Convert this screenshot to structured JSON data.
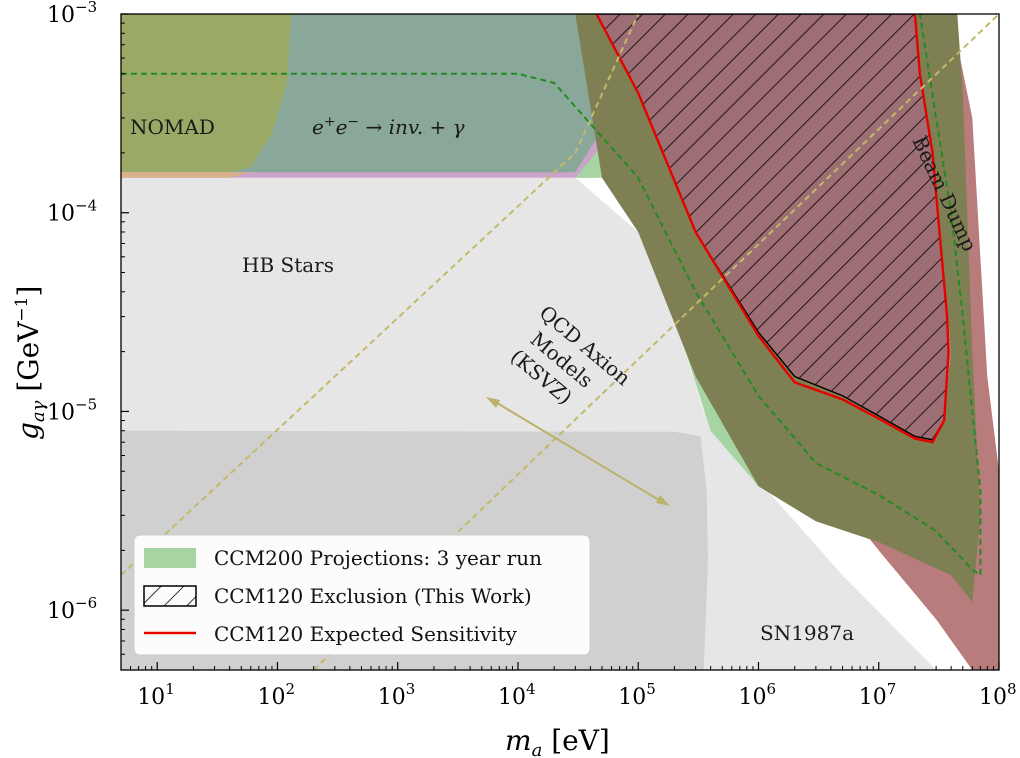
{
  "chart_data": {
    "type": "area",
    "title": "",
    "xlabel": "m_a [eV]",
    "ylabel": "g_aγ [GeV^-1]",
    "xscale": "log",
    "yscale": "log",
    "xlim": [
      5,
      100000000
    ],
    "ylim": [
      5e-07,
      0.001
    ],
    "grid": false,
    "legend_position": "lower-left",
    "x_ticks": [
      {
        "value": 10,
        "base": "10",
        "exp": "1"
      },
      {
        "value": 100,
        "base": "10",
        "exp": "2"
      },
      {
        "value": 1000,
        "base": "10",
        "exp": "3"
      },
      {
        "value": 10000,
        "base": "10",
        "exp": "4"
      },
      {
        "value": 100000,
        "base": "10",
        "exp": "5"
      },
      {
        "value": 1000000,
        "base": "10",
        "exp": "6"
      },
      {
        "value": 10000000,
        "base": "10",
        "exp": "7"
      },
      {
        "value": 100000000,
        "base": "10",
        "exp": "8"
      }
    ],
    "y_ticks": [
      {
        "value": 0.001,
        "base": "10",
        "exp": "−3"
      },
      {
        "value": 0.0001,
        "base": "10",
        "exp": "−4"
      },
      {
        "value": 1e-05,
        "base": "10",
        "exp": "−5"
      },
      {
        "value": 1e-06,
        "base": "10",
        "exp": "−6"
      }
    ],
    "regions": [
      {
        "name": "HB Stars",
        "color": "#e6e6e6",
        "points": [
          [
            5,
            0.00015
          ],
          [
            30000,
            0.00015
          ],
          [
            100000,
            8e-05
          ],
          [
            200000,
            3e-05
          ],
          [
            350000,
            1e-05
          ],
          [
            1000000,
            4.5e-06
          ],
          [
            5000000,
            1.5e-06
          ],
          [
            30000000,
            5e-07
          ],
          [
            5,
            5e-07
          ]
        ]
      },
      {
        "name": "SN1987a",
        "color": "#d0d0d0",
        "points": [
          [
            5,
            8e-06
          ],
          [
            200000,
            7.9e-06
          ],
          [
            330000,
            7.5e-06
          ],
          [
            370000,
            4e-06
          ],
          [
            380000,
            1.8e-06
          ],
          [
            350000,
            5e-07
          ],
          [
            5,
            5e-07
          ]
        ]
      },
      {
        "name": "Purple band",
        "color": "#c9a3c9",
        "points": [
          [
            5,
            0.00015
          ],
          [
            10000,
            0.00015
          ],
          [
            40000,
            0.00015
          ],
          [
            20000000,
            0.00088
          ],
          [
            20000000,
            0.001
          ],
          [
            5,
            0.001
          ]
        ]
      },
      {
        "name": "e+e- → inv. + γ",
        "color": "#8aa89a",
        "points": [
          [
            40,
            0.00016
          ],
          [
            20000,
            0.00016
          ],
          [
            30000,
            0.00016
          ],
          [
            200000,
            0.001
          ],
          [
            40,
            0.001
          ]
        ]
      },
      {
        "name": "NOMAD",
        "color": "#9aaa66",
        "points": [
          [
            5,
            0.00016
          ],
          [
            40,
            0.00016
          ],
          [
            60,
            0.00017
          ],
          [
            90,
            0.00025
          ],
          [
            120,
            0.00045
          ],
          [
            130,
            0.001
          ],
          [
            5,
            0.001
          ]
        ]
      },
      {
        "name": "NOMAD lower edge",
        "color": "#d8b28a",
        "points": [
          [
            5,
            0.00015
          ],
          [
            40,
            0.00015
          ],
          [
            60,
            0.00016
          ],
          [
            5,
            0.00016
          ]
        ]
      },
      {
        "name": "CCM200 Projections: 3 year run",
        "color": "#a6d4a2",
        "points": [
          [
            30000,
            0.00015
          ],
          [
            50000,
            0.00015
          ],
          [
            100000,
            8e-05
          ],
          [
            200000,
            3e-05
          ],
          [
            400000,
            8e-06
          ],
          [
            1000000,
            4.2e-06
          ],
          [
            3000000,
            2.8e-06
          ],
          [
            10000000,
            2.2e-06
          ],
          [
            40000000,
            1.6e-06
          ],
          [
            60000000,
            1.2e-06
          ],
          [
            70000000,
            9e-07
          ],
          [
            65000000,
            1.4e-06
          ],
          [
            30000000,
            7e-06
          ],
          [
            3000000,
            4e-05
          ],
          [
            1000000,
            0.0001
          ],
          [
            200000,
            0.0006
          ]
        ]
      },
      {
        "name": "Beam Dump",
        "color": "#b87c7c",
        "points": [
          [
            20000000,
            0.001
          ],
          [
            40000000,
            0.001
          ],
          [
            60000000,
            0.0003
          ],
          [
            80000000,
            1.5e-05
          ],
          [
            100000000,
            5e-06
          ],
          [
            100000000,
            5e-07
          ],
          [
            60000000,
            5e-07
          ],
          [
            30000000,
            9e-07
          ],
          [
            10000000,
            2e-06
          ],
          [
            3000000,
            5e-06
          ],
          [
            1000000,
            1e-05
          ],
          [
            300000,
            5e-05
          ],
          [
            100000,
            0.0002
          ],
          [
            60000,
            0.0005
          ],
          [
            30000,
            0.001
          ]
        ]
      },
      {
        "name": "Olive overlap",
        "color": "#7e7f52",
        "points": [
          [
            30000,
            0.001
          ],
          [
            45000,
            0.001
          ],
          [
            100000,
            0.0004
          ],
          [
            300000,
            8e-05
          ],
          [
            1000000,
            2.5e-05
          ],
          [
            2000000,
            1.5e-05
          ],
          [
            5000000,
            1.2e-05
          ],
          [
            10000000,
            9.5e-06
          ],
          [
            20000000,
            7.5e-06
          ],
          [
            30000000,
            7.2e-06
          ],
          [
            35000000,
            9e-06
          ],
          [
            40000000,
            2e-05
          ],
          [
            38000000,
            3e-05
          ],
          [
            30000000,
            0.00013
          ],
          [
            20000000,
            0.0003
          ],
          [
            20000000,
            0.001
          ],
          [
            45000000,
            0.001
          ],
          [
            50000000,
            0.0004
          ],
          [
            60000000,
            2e-05
          ],
          [
            70000000,
            3e-06
          ],
          [
            60000000,
            1.1e-06
          ],
          [
            40000000,
            1.5e-06
          ],
          [
            10000000,
            2.2e-06
          ],
          [
            3000000,
            2.8e-06
          ],
          [
            1000000,
            4.2e-06
          ],
          [
            300000,
            1.5e-05
          ],
          [
            100000,
            8e-05
          ],
          [
            50000,
            0.00015
          ]
        ]
      }
    ],
    "series": [
      {
        "name": "CCM120 Exclusion (This Work)",
        "style": "hatched",
        "edge_color": "#000000",
        "points": [
          [
            45000,
            0.001
          ],
          [
            100000,
            0.0004
          ],
          [
            300000,
            8e-05
          ],
          [
            1000000,
            2.5e-05
          ],
          [
            2000000,
            1.5e-05
          ],
          [
            5000000,
            1.2e-05
          ],
          [
            10000000,
            9.5e-06
          ],
          [
            20000000,
            7.5e-06
          ],
          [
            28000000,
            7.2e-06
          ],
          [
            35000000,
            9e-06
          ],
          [
            38000000,
            2e-05
          ],
          [
            37000000,
            3e-05
          ],
          [
            32000000,
            8e-05
          ],
          [
            28000000,
            0.0002
          ],
          [
            22000000,
            0.0005
          ],
          [
            20000000,
            0.001
          ]
        ]
      },
      {
        "name": "CCM120 Expected Sensitivity",
        "style": "solid",
        "color": "#e60000",
        "points": [
          [
            45000,
            0.001
          ],
          [
            100000,
            0.0004
          ],
          [
            300000,
            8e-05
          ],
          [
            1000000,
            2.4e-05
          ],
          [
            2000000,
            1.4e-05
          ],
          [
            5000000,
            1.15e-05
          ],
          [
            10000000,
            9.2e-06
          ],
          [
            20000000,
            7.3e-06
          ],
          [
            28000000,
            7e-06
          ],
          [
            35000000,
            9e-06
          ],
          [
            38000000,
            2e-05
          ],
          [
            37000000,
            3e-05
          ],
          [
            32000000,
            8e-05
          ],
          [
            28000000,
            0.0002
          ],
          [
            22000000,
            0.0005
          ],
          [
            20000000,
            0.001
          ]
        ]
      },
      {
        "name": "CCM200 boundary",
        "style": "dashed",
        "color": "#228b22",
        "points": [
          [
            5,
            0.0005
          ],
          [
            10000,
            0.0005
          ],
          [
            20000,
            0.00045
          ],
          [
            100000,
            0.00015
          ],
          [
            300000,
            4e-05
          ],
          [
            1000000,
            1.2e-05
          ],
          [
            3000000,
            5.5e-06
          ],
          [
            10000000,
            3.8e-06
          ],
          [
            30000000,
            2.5e-06
          ],
          [
            60000000,
            1.6e-06
          ],
          [
            70000000,
            1.5e-06
          ],
          [
            70000000,
            4e-06
          ],
          [
            60000000,
            1e-05
          ],
          [
            50000000,
            3e-05
          ],
          [
            40000000,
            0.0001
          ],
          [
            30000000,
            0.0003
          ],
          [
            22000000,
            0.001
          ]
        ]
      },
      {
        "name": "KSVZ band lower",
        "style": "dashed",
        "color": "#c4b96a",
        "points": [
          [
            200,
            5e-07
          ],
          [
            100000000,
            0.001
          ]
        ]
      },
      {
        "name": "KSVZ band upper",
        "style": "dashed",
        "color": "#c4b96a",
        "points": [
          [
            5,
            1.5e-06
          ],
          [
            30000,
            0.0002
          ],
          [
            100000,
            0.001
          ]
        ]
      }
    ],
    "annotations": [
      {
        "id": "nomad",
        "text": "NOMAD",
        "x": 40,
        "y": 0.00034
      },
      {
        "id": "hb-stars",
        "text": "HB Stars",
        "x": 300,
        "y": 7.5e-05
      },
      {
        "id": "sn1987a",
        "text": "SN1987a",
        "x": 3000000,
        "y": 7.5e-07
      },
      {
        "id": "beam-dump",
        "text": "Beam Dump",
        "x": 50000000,
        "y": 0.00012,
        "rotation": 65
      },
      {
        "id": "ee-inv",
        "text": "e+e− → inv. + γ",
        "x": 2000,
        "y": 0.00034
      },
      {
        "id": "qcd-axion",
        "lines": [
          "QCD Axion",
          "Models",
          "(KSVZ)"
        ],
        "x": 50000,
        "y": 2.5e-05,
        "rotation": 40
      }
    ]
  },
  "legend": {
    "items": [
      {
        "label": "CCM200 Projections: 3 year run",
        "swatch": "fill",
        "color": "#a6d4a2"
      },
      {
        "label": "CCM120 Exclusion (This Work)",
        "swatch": "hatch",
        "color": "#000000"
      },
      {
        "label": "CCM120 Expected Sensitivity",
        "swatch": "line",
        "color": "#e60000"
      }
    ]
  },
  "axis_titles": {
    "x_main": "m",
    "x_sub": "a",
    "x_unit": "[eV]",
    "y_main": "g",
    "y_sub": "aγ",
    "y_unit": "[GeV",
    "y_unit_exp": "−1",
    "y_unit_close": "]"
  },
  "ee_label": {
    "e1": "e",
    "plus": "+",
    "e2": "e",
    "minus": "−",
    "rest": " → inv. + γ"
  }
}
